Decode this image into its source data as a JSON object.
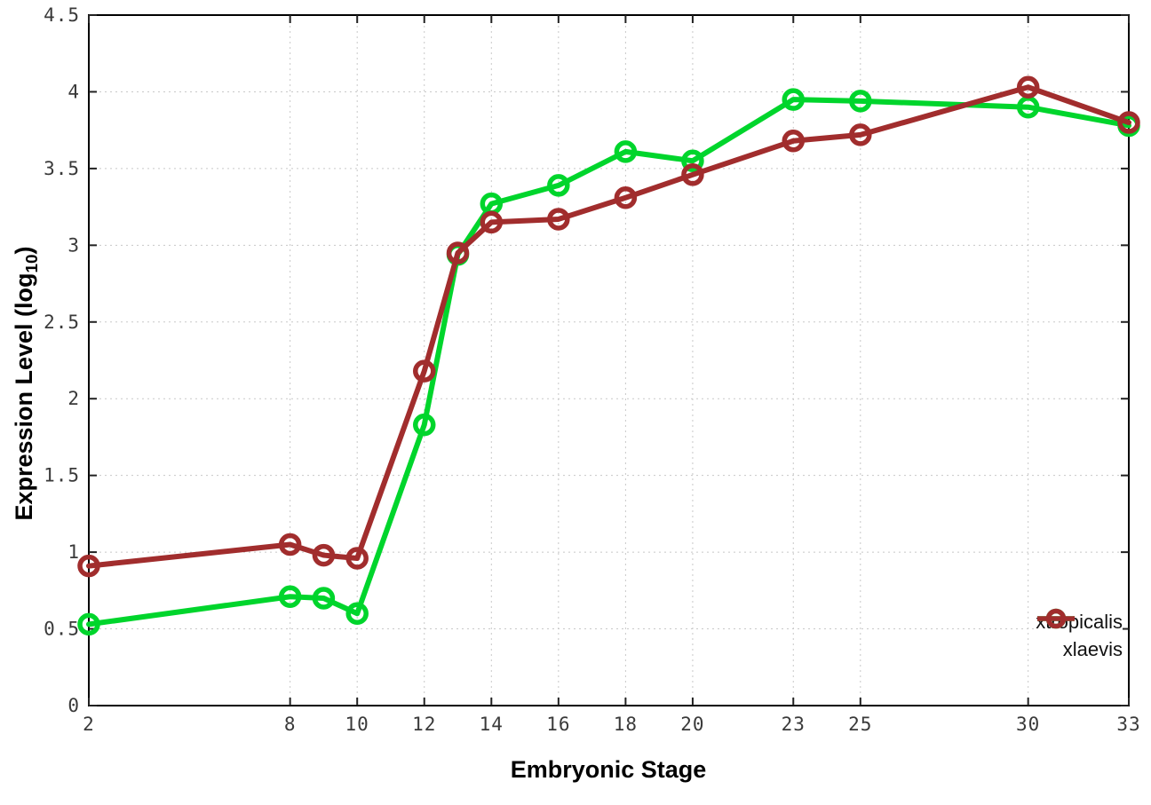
{
  "chart_data": {
    "type": "line",
    "title": "",
    "xlabel": "Embryonic Stage",
    "ylabel": "Expression Level (log10)",
    "ylabel_parts": {
      "prefix": "Expression Level (log",
      "sub": "10",
      "suffix": ")"
    },
    "xlim": [
      2,
      33
    ],
    "ylim": [
      0,
      4.5
    ],
    "x_ticks": [
      2,
      8,
      10,
      12,
      14,
      16,
      18,
      20,
      23,
      25,
      30,
      33
    ],
    "y_ticks": [
      0,
      0.5,
      1,
      1.5,
      2,
      2.5,
      3,
      3.5,
      4,
      4.5
    ],
    "grid": true,
    "legend_position": "bottom-right",
    "x": [
      2,
      8,
      9,
      10,
      12,
      13,
      14,
      16,
      18,
      20,
      23,
      25,
      30,
      33
    ],
    "series": [
      {
        "name": "xtropicalis",
        "color": "#00d52c",
        "values": [
          0.53,
          0.71,
          0.7,
          0.6,
          1.83,
          2.94,
          3.27,
          3.39,
          3.61,
          3.55,
          3.95,
          3.94,
          3.9,
          3.78
        ]
      },
      {
        "name": "xlaevis",
        "color": "#a12d2d",
        "values": [
          0.91,
          1.05,
          0.98,
          0.96,
          2.18,
          2.95,
          3.15,
          3.17,
          3.31,
          3.46,
          3.68,
          3.72,
          4.03,
          3.8
        ]
      }
    ],
    "style": {
      "grid_color": "#c8c8c8",
      "border_color": "#000000",
      "tick_text_color": "#3a3a3a"
    }
  }
}
